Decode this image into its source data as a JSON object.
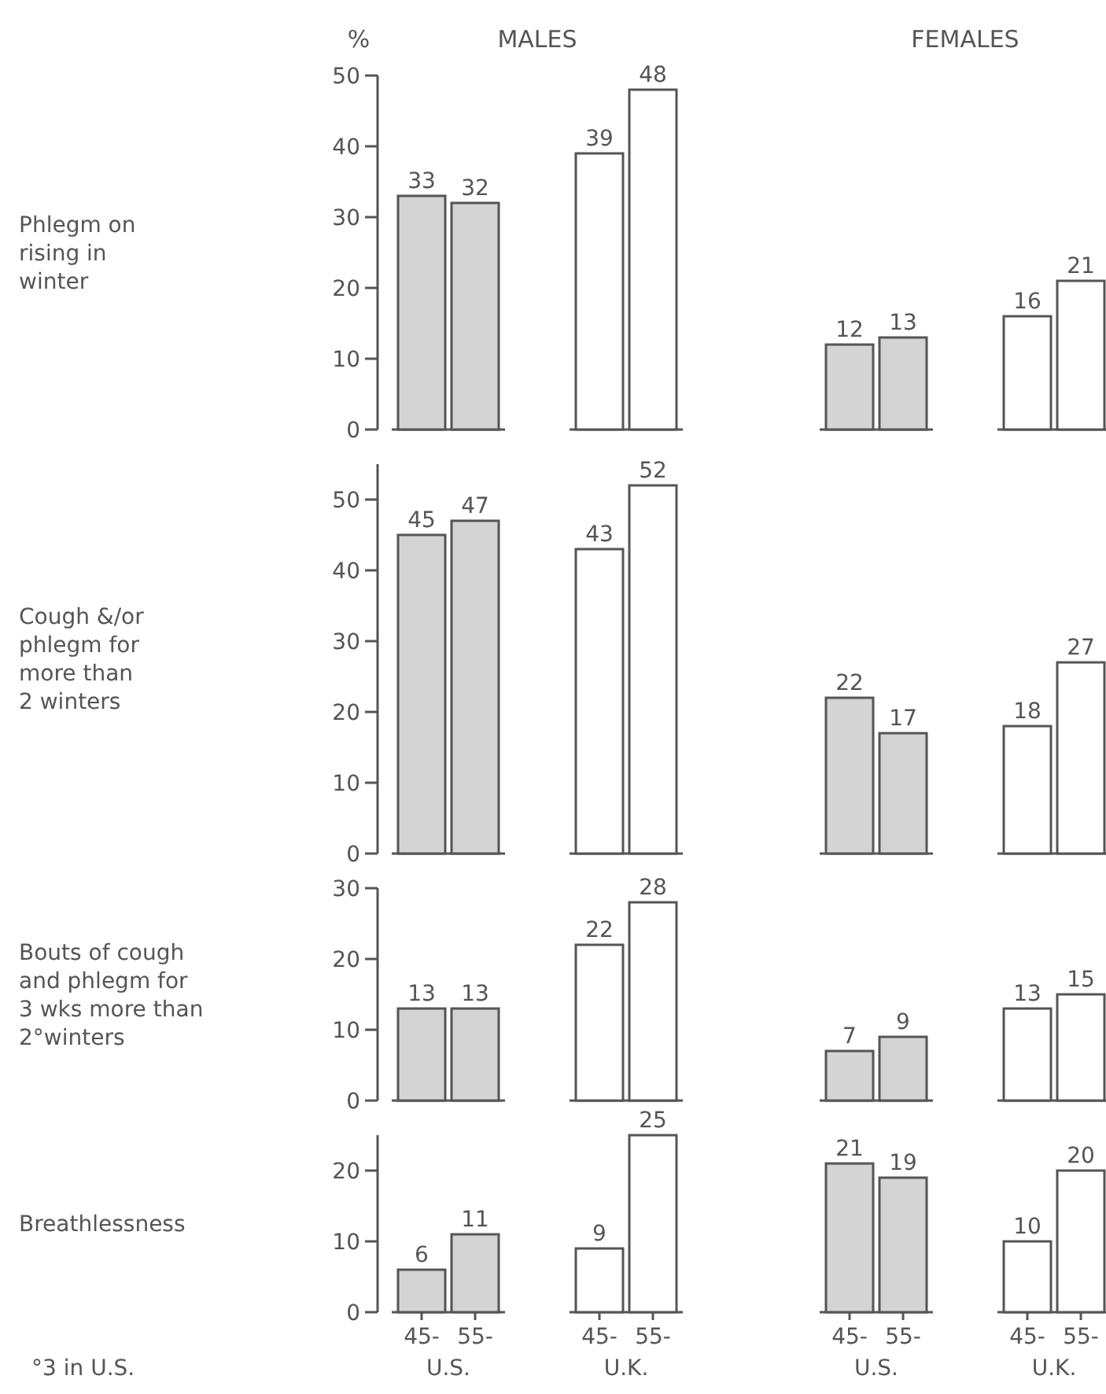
{
  "chart_data": [
    {
      "type": "bar",
      "ylabel": "Phlegm on\nrising in\nwinter",
      "categories": [
        null,
        null,
        null,
        null,
        null,
        null,
        null,
        null
      ],
      "values": [
        33,
        32,
        39,
        48,
        12,
        13,
        16,
        21
      ],
      "colors": [
        "#d4d4d4",
        "#d4d4d4",
        "#ffffff",
        "#ffffff",
        "#d4d4d4",
        "#d4d4d4",
        "#ffffff",
        "#ffffff"
      ],
      "data_labels": true,
      "ylim": [
        0,
        50
      ],
      "yticks": [
        0,
        10,
        20,
        30,
        40,
        50
      ],
      "tick_labels": "y",
      "grid": false,
      "annotations": [
        "%",
        "MALES",
        "FEMALES"
      ]
    },
    {
      "type": "bar",
      "ylabel": "Cough &/or\nphlegm for\nmore than\n2 winters",
      "categories": [
        null,
        null,
        null,
        null,
        null,
        null,
        null,
        null
      ],
      "values": [
        45,
        47,
        43,
        52,
        22,
        17,
        18,
        27
      ],
      "colors": [
        "#d4d4d4",
        "#d4d4d4",
        "#ffffff",
        "#ffffff",
        "#d4d4d4",
        "#d4d4d4",
        "#ffffff",
        "#ffffff"
      ],
      "data_labels": true,
      "ylim": [
        0,
        55
      ],
      "yticks": [
        0,
        10,
        20,
        30,
        40,
        50
      ],
      "tick_labels": "y",
      "grid": false
    },
    {
      "type": "bar",
      "ylabel": "Bouts of cough\nand phlegm for\n3 wks more than\n2°winters",
      "categories": [
        null,
        null,
        null,
        null,
        null,
        null,
        null,
        null
      ],
      "values": [
        13,
        13,
        22,
        28,
        7,
        9,
        13,
        15
      ],
      "colors": [
        "#d4d4d4",
        "#d4d4d4",
        "#ffffff",
        "#ffffff",
        "#d4d4d4",
        "#d4d4d4",
        "#ffffff",
        "#ffffff"
      ],
      "data_labels": true,
      "ylim": [
        0,
        30
      ],
      "yticks": [
        0,
        10,
        20,
        30
      ],
      "tick_labels": "y",
      "grid": false
    },
    {
      "type": "bar",
      "ylabel": "Breathlessness",
      "categories": [
        "45-",
        "55-",
        "45-",
        "55-",
        "45-",
        "55-",
        "45-",
        "55-"
      ],
      "values": [
        6,
        11,
        9,
        25,
        21,
        19,
        10,
        20
      ],
      "colors": [
        "#d4d4d4",
        "#d4d4d4",
        "#ffffff",
        "#ffffff",
        "#d4d4d4",
        "#d4d4d4",
        "#ffffff",
        "#ffffff"
      ],
      "data_labels": true,
      "ylim": [
        0,
        25
      ],
      "yticks": [
        0,
        10,
        20
      ],
      "grid": false,
      "annotations": [
        "U.S.",
        "U.K.",
        "U.S.",
        "U.K.",
        "°3 in U.S."
      ]
    }
  ]
}
